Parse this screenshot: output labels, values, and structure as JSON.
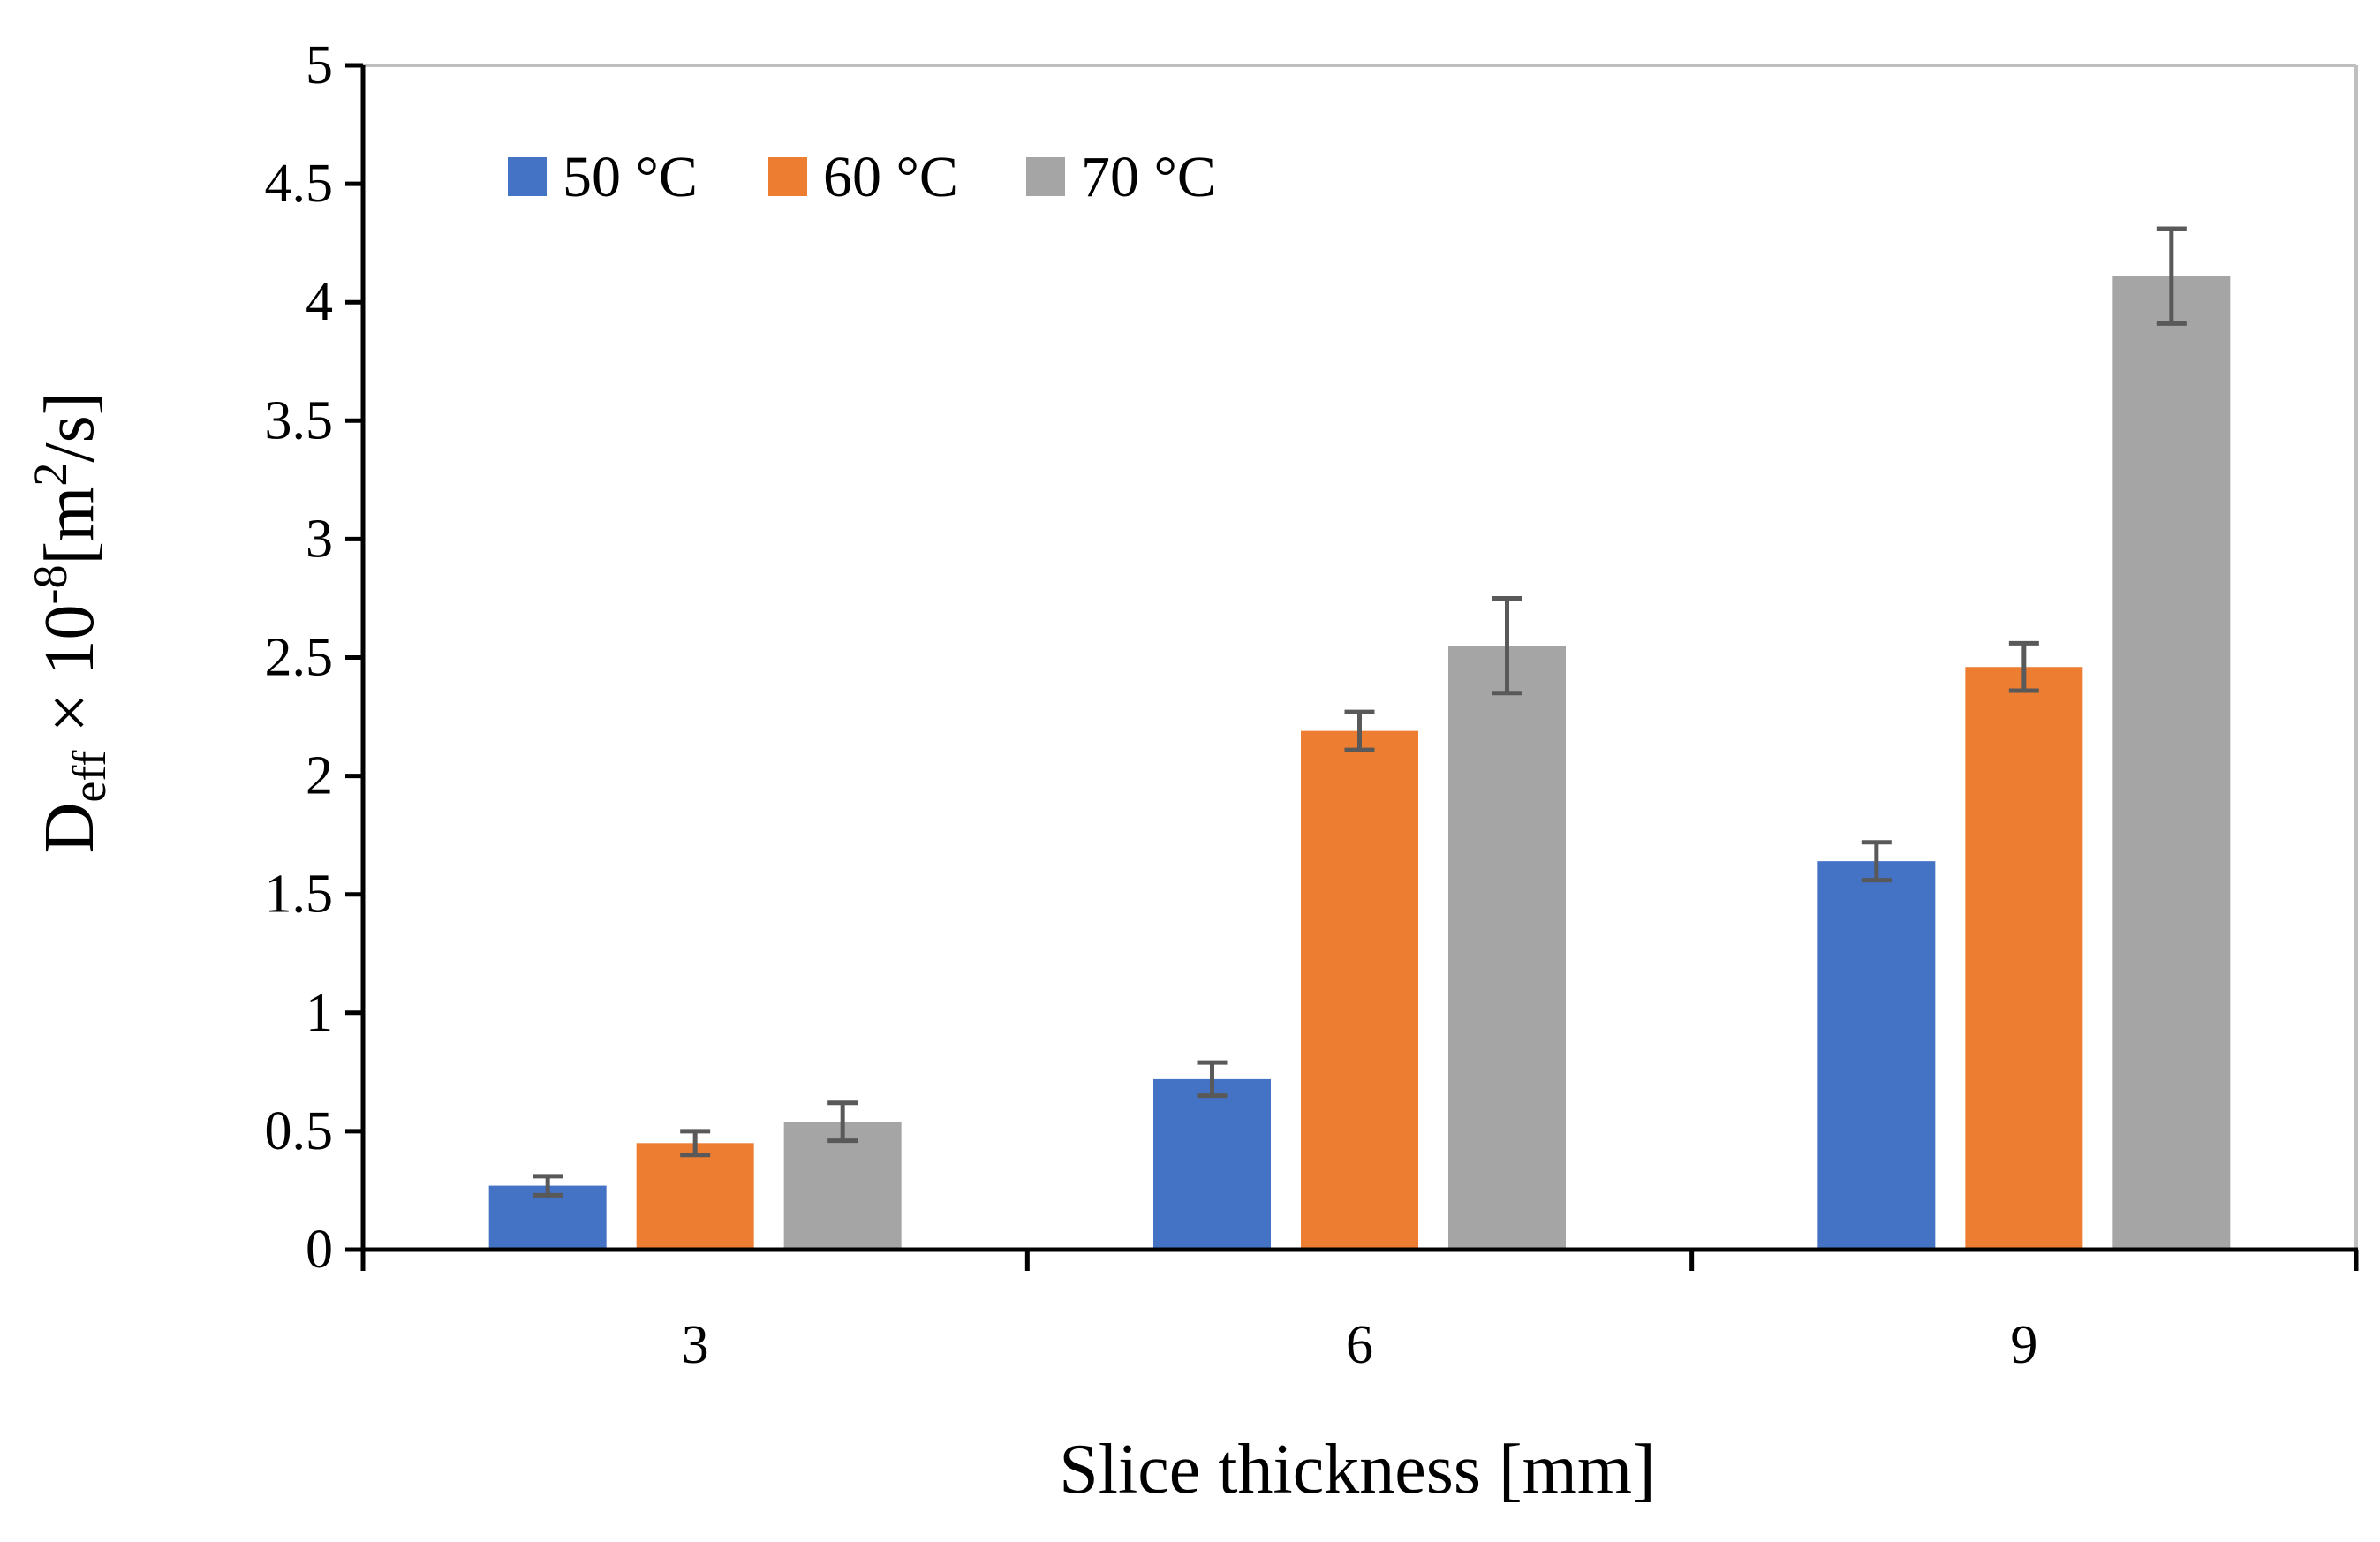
{
  "chart_data": {
    "type": "bar",
    "title": "",
    "xlabel": "Slice thickness [mm]",
    "ylabel": {
      "main": "D",
      "sub": "eff",
      "middle": " × 10",
      "sup": "-8",
      "unit_open": "[m",
      "unit_sup": "2",
      "unit_close": "/s]"
    },
    "categories": [
      "3",
      "6",
      "9"
    ],
    "ylim": [
      0,
      5
    ],
    "yticks": [
      0,
      0.5,
      1,
      1.5,
      2,
      2.5,
      3,
      3.5,
      4,
      4.5,
      5
    ],
    "ytick_labels": [
      "0",
      "0.5",
      "1",
      "1.5",
      "2",
      "2.5",
      "3",
      "3.5",
      "4",
      "4.5",
      "5"
    ],
    "legend_position": "top-left",
    "grid": false,
    "series": [
      {
        "name": "50 °C",
        "color": "#4472C4",
        "values": [
          0.27,
          0.72,
          1.64
        ],
        "errors": [
          0.04,
          0.07,
          0.08
        ]
      },
      {
        "name": "60 °C",
        "color": "#ED7D31",
        "values": [
          0.45,
          2.19,
          2.46
        ],
        "errors": [
          0.05,
          0.08,
          0.1
        ]
      },
      {
        "name": "70 °C",
        "color": "#A5A5A5",
        "values": [
          0.54,
          2.55,
          4.11
        ],
        "errors": [
          0.08,
          0.2,
          0.2
        ]
      }
    ],
    "error_bar_color": "#595959",
    "axis_color": "#000000",
    "frame_color": "#BFBFBF"
  }
}
